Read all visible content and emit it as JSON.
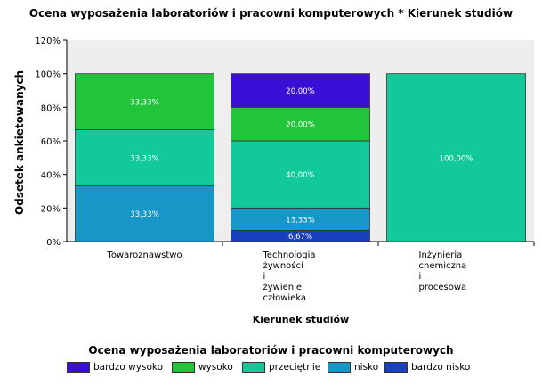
{
  "chart_data": {
    "type": "bar",
    "stacked": true,
    "title": "Ocena wyposażenia laboratoriów i pracowni komputerowych * Kierunek studiów",
    "xlabel": "Kierunek studiów",
    "ylabel": "Odsetek ankietowanych",
    "ylim": [
      0,
      120
    ],
    "yticks": [
      "0%",
      "20%",
      "40%",
      "60%",
      "80%",
      "100%",
      "120%"
    ],
    "categories": [
      [
        "Towaroznawstwo"
      ],
      [
        "Technologia",
        "żywności",
        "i",
        "żywienie",
        "człowieka"
      ],
      [
        "Inżynieria",
        "chemiczna",
        "i",
        "procesowa"
      ]
    ],
    "series": [
      {
        "name": "bardzo nisko",
        "color": "#1a3fbf",
        "values": [
          0,
          6.67,
          0
        ],
        "labels": [
          "",
          "6,67%",
          ""
        ]
      },
      {
        "name": "nisko",
        "color": "#1796c8",
        "values": [
          33.33,
          13.33,
          0
        ],
        "labels": [
          "33,33%",
          "13,33%",
          ""
        ]
      },
      {
        "name": "przeciętnie",
        "color": "#12c99a",
        "values": [
          33.33,
          40.0,
          100.0
        ],
        "labels": [
          "33,33%",
          "40,00%",
          "100,00%"
        ]
      },
      {
        "name": "wysoko",
        "color": "#22c43a",
        "values": [
          33.33,
          20.0,
          0
        ],
        "labels": [
          "33,33%",
          "20,00%",
          ""
        ]
      },
      {
        "name": "bardzo wysoko",
        "color": "#3a0ed4",
        "values": [
          0,
          20.0,
          0
        ],
        "labels": [
          "",
          "20,00%",
          ""
        ]
      }
    ],
    "legend": {
      "title": "Ocena wyposażenia laboratoriów i pracowni komputerowych",
      "position": "bottom",
      "order": [
        "bardzo wysoko",
        "wysoko",
        "przeciętnie",
        "nisko",
        "bardzo nisko"
      ]
    },
    "grid": false
  }
}
